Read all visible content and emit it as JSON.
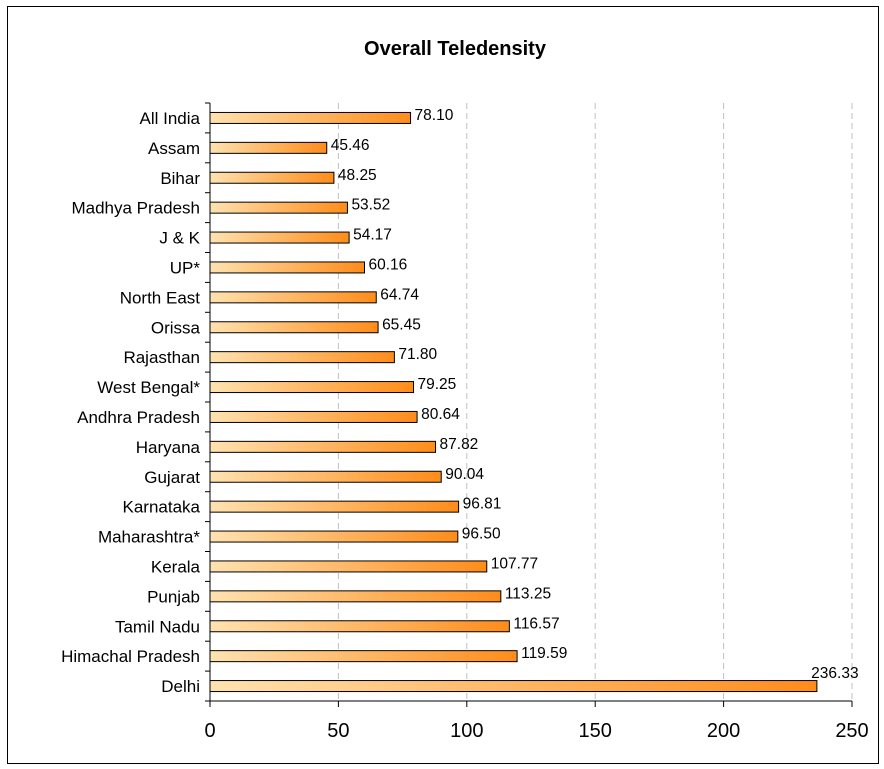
{
  "chart_data": {
    "type": "bar",
    "orientation": "horizontal",
    "title": "Overall Teledensity",
    "xlabel": "",
    "ylabel": "",
    "categories": [
      "All India",
      "Assam",
      "Bihar",
      "Madhya Pradesh",
      "J & K",
      "UP*",
      "North East",
      "Orissa",
      "Rajasthan",
      "West Bengal*",
      "Andhra Pradesh",
      "Haryana",
      "Gujarat",
      "Karnataka",
      "Maharashtra*",
      "Kerala",
      "Punjab",
      "Tamil Nadu",
      "Himachal Pradesh",
      "Delhi"
    ],
    "values": [
      78.1,
      45.46,
      48.25,
      53.52,
      54.17,
      60.16,
      64.74,
      65.45,
      71.8,
      79.25,
      80.64,
      87.82,
      90.04,
      96.81,
      96.5,
      107.77,
      113.25,
      116.57,
      119.59,
      236.33
    ],
    "value_labels": [
      "78.10",
      "45.46",
      "48.25",
      "53.52",
      "54.17",
      "60.16",
      "64.74",
      "65.45",
      "71.80",
      "79.25",
      "80.64",
      "87.82",
      "90.04",
      "96.81",
      "96.50",
      "107.77",
      "113.25",
      "116.57",
      "119.59",
      "236.33"
    ],
    "xlim": [
      0,
      250
    ],
    "xticks": [
      0,
      50,
      100,
      150,
      200,
      250
    ],
    "xtick_labels": [
      "0",
      "50",
      "100",
      "150",
      "200",
      "250"
    ],
    "grid": "vertical dashed",
    "legend": "none",
    "colors": {
      "bar_fill_start": "#ffe2b0",
      "bar_fill_end": "#ff8c1a",
      "bar_stroke": "#000000",
      "grid": "#c0c0c0",
      "axis": "#000000"
    }
  }
}
